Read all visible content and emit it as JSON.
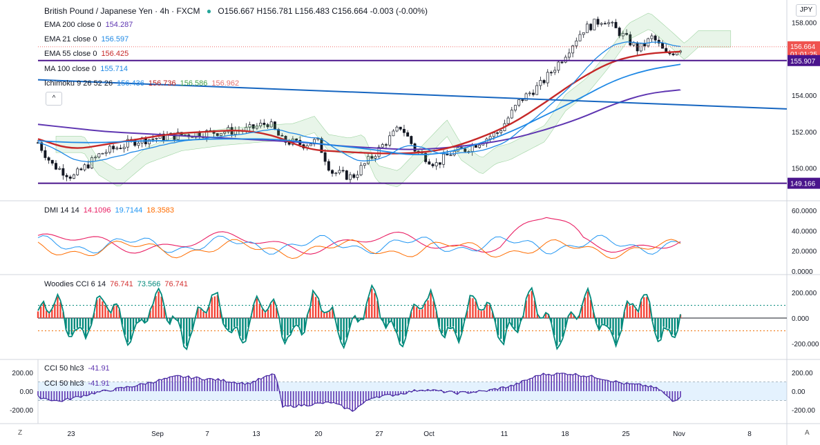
{
  "header": {
    "symbol": "British Pound / Japanese Yen · 4h · FXCM",
    "status_dot_color": "#26a69a",
    "ohlc": "O156.667 H156.781 L156.483 C156.664 -0.003 (-0.00%)"
  },
  "currency_button": "JPY",
  "collapse_button": "^",
  "indicators": {
    "ema200": {
      "label": "EMA 200 close 0",
      "value": "154.287",
      "color": "#5e35b1"
    },
    "ema21": {
      "label": "EMA 21 close 0",
      "value": "156.597",
      "color": "#1e88e5"
    },
    "ema55": {
      "label": "EMA 55 close 0",
      "value": "156.425",
      "color": "#c62828"
    },
    "ma100": {
      "label": "MA 100 close 0",
      "value": "155.714",
      "color": "#1e88e5"
    },
    "ichimoku": {
      "label": "Ichimoku 9 26 52 26",
      "v1": "156.436",
      "v2": "156.736",
      "v3": "156.586",
      "v4": "156.962"
    },
    "dmi": {
      "label": "DMI 14 14",
      "v1": "14.1096",
      "v2": "19.7144",
      "v3": "18.3583"
    },
    "woodies": {
      "label": "Woodies CCI 6 14",
      "v1": "76.741",
      "v2": "73.566",
      "v3": "76.741"
    },
    "cci50": {
      "label": "CCI 50 hlc3",
      "value": "-41.91",
      "label2": "CCI 50 hlc3",
      "value2": "-41.91"
    }
  },
  "price_axis": {
    "ticks": [
      "158.000",
      "156.000",
      "154.000",
      "152.000",
      "150.000"
    ],
    "current_price": "156.664",
    "countdown": "01:01:25",
    "line_upper": "155.907",
    "line_lower": "149.166"
  },
  "dmi_axis": [
    "60.0000",
    "40.0000",
    "20.0000",
    "0.0000"
  ],
  "woodies_axis": [
    "200.000",
    "0.000",
    "-200.000"
  ],
  "cci_axis_right": [
    "200.00",
    "0.00",
    "-200.00"
  ],
  "cci_axis_left": [
    "200.00",
    "0.00",
    "-200.00"
  ],
  "time_axis": [
    "23",
    "Sep",
    "7",
    "13",
    "20",
    "27",
    "Oct",
    "11",
    "18",
    "25",
    "Nov",
    "8"
  ],
  "corner_left": "Z",
  "corner_right": "A",
  "chart_data": {
    "type": "line",
    "title": "British Pound / Japanese Yen · 4h · FXCM",
    "y_range": [
      149.0,
      158.4
    ],
    "candles": [],
    "series": [
      {
        "name": "EMA 200 close 0",
        "color": "#5e35b1",
        "values": [
          152.4,
          152.2,
          152.0,
          151.9,
          151.8,
          151.7,
          151.6,
          151.5,
          151.4,
          151.2,
          151.1,
          151.0,
          151.1,
          151.3,
          151.6,
          152.1,
          152.7,
          153.5,
          154.1,
          154.3
        ]
      },
      {
        "name": "EMA 55 close 0",
        "color": "#c62828",
        "values": [
          151.6,
          151.0,
          151.3,
          151.6,
          151.9,
          152.0,
          152.1,
          151.8,
          151.0,
          150.9,
          150.8,
          150.8,
          151.0,
          151.6,
          152.4,
          153.6,
          154.9,
          155.9,
          156.3,
          156.4
        ]
      },
      {
        "name": "MA 100 close 0",
        "color": "#1e88e5",
        "values": [
          151.5,
          151.4,
          151.4,
          151.5,
          151.5,
          151.6,
          151.6,
          151.6,
          151.4,
          151.2,
          151.0,
          150.7,
          150.8,
          151.3,
          152.0,
          152.9,
          153.8,
          154.8,
          155.4,
          155.7
        ]
      }
    ],
    "x_labels": [
      "23",
      "Sep",
      "7",
      "13",
      "20",
      "27",
      "Oct",
      "11",
      "18",
      "25",
      "Nov",
      "8"
    ],
    "horizontal_levels": [
      155.907,
      149.166
    ]
  }
}
